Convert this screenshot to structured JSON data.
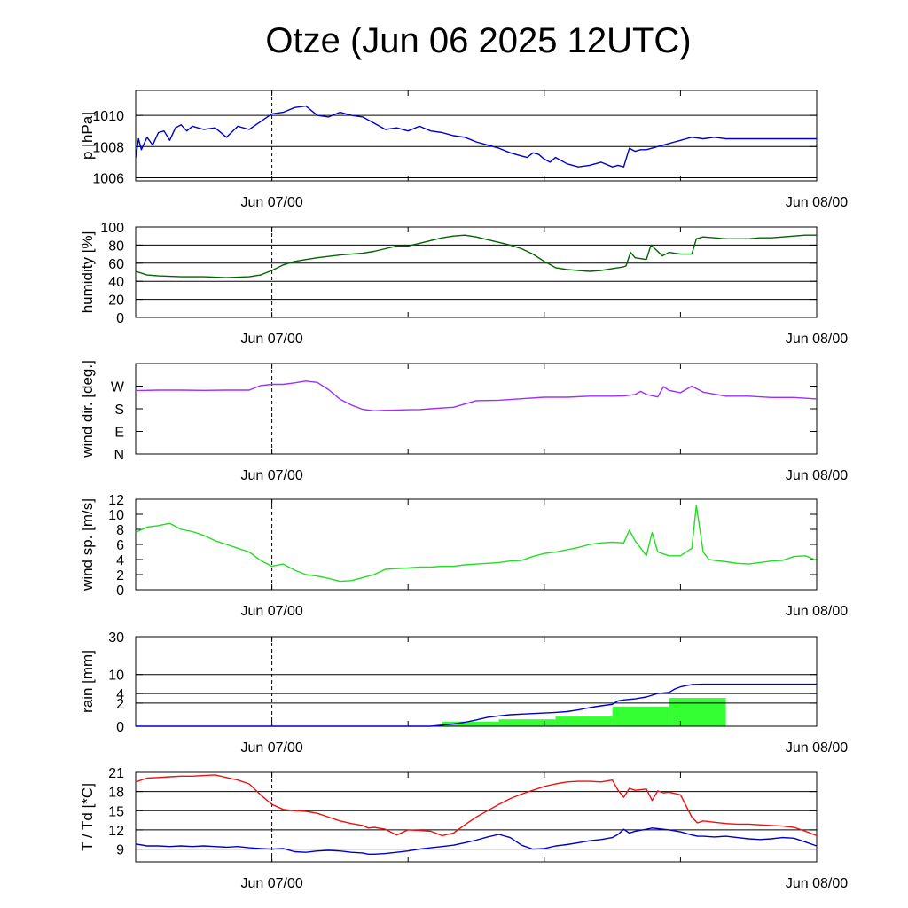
{
  "title": "Otze (Jun 06 2025 12UTC)",
  "x_ticks": [
    "Jun 07/00",
    "Jun 08/00"
  ],
  "colors": {
    "pressure": "#0000cc",
    "humidity": "#006400",
    "wind_dir": "#9b30ff",
    "wind_speed": "#22dd22",
    "rain_line": "#0000cc",
    "rain_bar": "#33ff33",
    "temperature": "#ee1111",
    "dewpoint": "#0000cc",
    "grid": "#000000"
  },
  "chart_data": [
    {
      "type": "line",
      "id": "pressure",
      "ylabel": "p [hPa]",
      "ylim": [
        1005.8,
        1011.6
      ],
      "yticks": [
        1006,
        1008,
        1010
      ],
      "yticklabels": [
        "1006",
        "1008",
        "1010"
      ],
      "grid": true,
      "x_hours": [
        0,
        0.25,
        0.5,
        1,
        1.5,
        2,
        2.5,
        3,
        3.5,
        4,
        4.5,
        5,
        6,
        7,
        8,
        9,
        10,
        11,
        12,
        13,
        14,
        15,
        16,
        17,
        18,
        19,
        20,
        21,
        22,
        23,
        24,
        25,
        26,
        27,
        28,
        29,
        30,
        31,
        32,
        33,
        34,
        34.5,
        35,
        35.5,
        36,
        36.5,
        37,
        38,
        39,
        40,
        41,
        42,
        42.5,
        43,
        43.5,
        44,
        44.5,
        45,
        45.5,
        46,
        46.5,
        47,
        47.5,
        48,
        48.5,
        49,
        50,
        51,
        52,
        53,
        54,
        55,
        56,
        57,
        58,
        59,
        60
      ],
      "series": [
        {
          "values": [
            1007.3,
            1008.5,
            1007.8,
            1008.6,
            1008.1,
            1008.9,
            1009.0,
            1008.4,
            1009.2,
            1009.4,
            1009.0,
            1009.3,
            1009.1,
            1009.2,
            1008.6,
            1009.3,
            1009.1,
            1009.6,
            1010.1,
            1010.2,
            1010.5,
            1010.6,
            1010.0,
            1009.9,
            1010.2,
            1010.0,
            1009.9,
            1009.5,
            1009.1,
            1009.2,
            1009.0,
            1009.3,
            1009.0,
            1008.9,
            1008.7,
            1008.6,
            1008.3,
            1008.1,
            1007.9,
            1007.6,
            1007.4,
            1007.3,
            1007.6,
            1007.5,
            1007.2,
            1007.0,
            1007.3,
            1006.9,
            1006.7,
            1006.8,
            1007.0,
            1006.7,
            1006.8,
            1006.7,
            1007.9,
            1007.7,
            1007.8,
            1007.8,
            1007.9,
            1008.0,
            1008.1,
            1008.2,
            1008.3,
            1008.4,
            1008.5,
            1008.6,
            1008.5,
            1008.6,
            1008.5,
            1008.5,
            1008.5,
            1008.5,
            1008.5,
            1008.5,
            1008.5,
            1008.5,
            1008.5
          ]
        }
      ]
    },
    {
      "type": "line",
      "id": "humidity",
      "ylabel": "humidity [%]",
      "ylim": [
        0,
        100
      ],
      "yticks": [
        0,
        20,
        40,
        60,
        80,
        100
      ],
      "yticklabels": [
        "0",
        "20",
        "40",
        "60",
        "80",
        "100"
      ],
      "grid": true,
      "x_hours": [
        0,
        1,
        2,
        4,
        6,
        8,
        10,
        11,
        12,
        13,
        14,
        16,
        18,
        20,
        21,
        22,
        23,
        24,
        25,
        26,
        27,
        28,
        29,
        30,
        31,
        32,
        33,
        34,
        35,
        36,
        37,
        38,
        39,
        40,
        41,
        42,
        43,
        43.2,
        43.6,
        44,
        45,
        45.4,
        46,
        46.4,
        47,
        48,
        49,
        49.4,
        50,
        51,
        52,
        53,
        54,
        55,
        56,
        57,
        58,
        59,
        60
      ],
      "series": [
        {
          "values": [
            51,
            47,
            46,
            45,
            45,
            44,
            45,
            47,
            52,
            58,
            62,
            66,
            69,
            71,
            73,
            76,
            79,
            79,
            82,
            85,
            88,
            90,
            91,
            89,
            86,
            83,
            80,
            76,
            70,
            62,
            55,
            53,
            52,
            51,
            52,
            54,
            56,
            57,
            72,
            66,
            64,
            80,
            73,
            68,
            72,
            70,
            70,
            87,
            89,
            88,
            87,
            87,
            87,
            88,
            88,
            89,
            90,
            91,
            91
          ]
        }
      ]
    },
    {
      "type": "line",
      "id": "wind_dir",
      "ylabel": "wind dir. [deg.]",
      "ylim": [
        0,
        360
      ],
      "yticks": [
        0,
        90,
        180,
        270
      ],
      "yticklabels": [
        "N",
        "E",
        "S",
        "W"
      ],
      "grid": false,
      "x_hours": [
        0,
        2,
        4,
        6,
        8,
        10,
        11,
        12,
        13,
        14,
        15,
        16,
        17,
        18,
        19,
        20,
        21,
        22,
        23,
        24,
        25,
        26,
        28,
        30,
        32,
        34,
        36,
        38,
        40,
        42,
        43,
        44,
        44.5,
        45,
        46,
        46.5,
        47,
        48,
        49,
        50,
        52,
        54,
        56,
        58,
        60
      ],
      "series": [
        {
          "values": [
            252,
            254,
            254,
            253,
            254,
            254,
            272,
            277,
            277,
            283,
            290,
            285,
            256,
            218,
            195,
            178,
            172,
            174,
            175,
            176,
            177,
            180,
            186,
            212,
            214,
            220,
            226,
            226,
            230,
            230,
            231,
            237,
            249,
            237,
            227,
            268,
            253,
            244,
            270,
            246,
            230,
            230,
            225,
            225,
            219
          ]
        }
      ]
    },
    {
      "type": "line",
      "id": "wind_speed",
      "ylabel": "wind sp. [m/s]",
      "ylim": [
        0,
        12
      ],
      "yticks": [
        0,
        2,
        4,
        6,
        8,
        10,
        12
      ],
      "yticklabels": [
        "0",
        "2",
        "4",
        "6",
        "8",
        "10",
        "12"
      ],
      "grid": false,
      "x_hours": [
        0,
        1,
        2,
        3,
        4,
        5,
        6,
        7,
        8,
        9,
        10,
        11,
        12,
        13,
        14,
        15,
        16,
        17,
        18,
        19,
        20,
        21,
        22,
        23,
        24,
        25,
        26,
        27,
        28,
        29,
        30,
        31,
        32,
        33,
        34,
        35,
        36,
        37,
        38,
        39,
        40,
        41,
        42,
        43,
        43.5,
        44,
        45,
        45.5,
        46,
        47,
        48,
        49,
        49.4,
        50,
        50.5,
        51,
        52,
        53,
        54,
        55,
        56,
        57,
        58,
        59,
        60
      ],
      "series": [
        {
          "values": [
            7.6,
            8.3,
            8.5,
            8.8,
            8.0,
            7.7,
            7.2,
            6.5,
            6.0,
            5.5,
            5.0,
            3.9,
            3.1,
            3.4,
            2.6,
            2.0,
            1.8,
            1.5,
            1.1,
            1.2,
            1.6,
            2.0,
            2.7,
            2.8,
            2.9,
            3.0,
            3.0,
            3.1,
            3.1,
            3.3,
            3.4,
            3.5,
            3.6,
            3.8,
            3.9,
            4.4,
            4.8,
            5.0,
            5.3,
            5.6,
            6.0,
            6.2,
            6.3,
            6.2,
            7.9,
            6.5,
            4.5,
            7.6,
            5.0,
            4.5,
            4.5,
            5.5,
            11.2,
            5.0,
            4.0,
            3.9,
            3.7,
            3.5,
            3.4,
            3.6,
            3.8,
            3.9,
            4.4,
            4.5,
            3.9
          ]
        }
      ]
    },
    {
      "type": "line",
      "id": "rain",
      "ylabel": "rain [mm]",
      "scale": "sqrt",
      "ylim": [
        0,
        30
      ],
      "yticks": [
        0,
        2,
        4,
        10,
        30
      ],
      "yticklabels": [
        "0",
        "2",
        "4",
        "10",
        "30"
      ],
      "grid": true,
      "x_hours": [
        0,
        20,
        24,
        26,
        27,
        28,
        29,
        30,
        31,
        32,
        33,
        34,
        35,
        36,
        37,
        38,
        39,
        40,
        41,
        42,
        42.5,
        43,
        44,
        45,
        45.5,
        46,
        47,
        47.5,
        48,
        49,
        50,
        51,
        54,
        57,
        60
      ],
      "series": [
        {
          "values": [
            0,
            0,
            0,
            0,
            0.005,
            0.02,
            0.06,
            0.15,
            0.3,
            0.4,
            0.5,
            0.55,
            0.6,
            0.65,
            0.72,
            0.8,
            1.0,
            1.3,
            1.55,
            1.8,
            2.4,
            2.6,
            2.8,
            3.2,
            3.6,
            4.0,
            4.3,
            5.2,
            5.8,
            6.5,
            6.6,
            6.6,
            6.6,
            6.6,
            6.6
          ]
        }
      ],
      "bars": {
        "x_start": [
          27,
          32,
          37,
          42,
          47
        ],
        "x_end": [
          32,
          37,
          42,
          47,
          52
        ],
        "values": [
          0.08,
          0.18,
          0.35,
          1.45,
          3.0
        ]
      }
    },
    {
      "type": "line",
      "id": "temperature",
      "ylabel": "T / Td [*C]",
      "ylim": [
        7,
        21
      ],
      "yticks": [
        9,
        12,
        15,
        18,
        21
      ],
      "yticklabels": [
        "9",
        "12",
        "15",
        "18",
        "21"
      ],
      "grid": true,
      "x_hours": [
        0,
        1,
        2,
        3,
        4,
        5,
        6,
        7,
        8,
        9,
        10,
        11,
        12,
        13,
        14,
        15,
        16,
        17,
        18,
        19,
        20,
        20.5,
        21,
        22,
        23,
        24,
        25,
        26,
        27,
        28,
        29,
        30,
        31,
        32,
        33,
        34,
        35,
        36,
        37,
        38,
        39,
        40,
        41,
        42,
        42.5,
        43,
        43.5,
        44,
        45,
        45.5,
        46,
        46.5,
        47,
        48,
        49,
        49.5,
        50,
        51,
        52,
        53,
        54,
        55,
        56,
        57,
        58,
        59,
        60
      ],
      "series": [
        {
          "name": "T",
          "values": [
            19.5,
            20.1,
            20.2,
            20.3,
            20.4,
            20.4,
            20.5,
            20.6,
            20.2,
            19.8,
            19.2,
            17.5,
            16.0,
            15.2,
            15.0,
            14.9,
            14.6,
            14.0,
            13.4,
            13.0,
            12.7,
            12.3,
            12.4,
            12.1,
            11.2,
            12.0,
            11.9,
            11.8,
            11.1,
            11.5,
            12.8,
            14.0,
            15.0,
            16.0,
            16.9,
            17.6,
            18.2,
            18.8,
            19.2,
            19.5,
            19.6,
            19.6,
            19.5,
            19.8,
            18.2,
            17.1,
            18.5,
            18.2,
            18.4,
            16.6,
            18.1,
            17.8,
            17.9,
            17.5,
            14.0,
            13.1,
            13.4,
            13.2,
            13.0,
            12.9,
            12.9,
            12.8,
            12.7,
            12.6,
            12.4,
            11.8,
            11.1
          ]
        },
        {
          "name": "Td",
          "values": [
            9.8,
            9.5,
            9.5,
            9.4,
            9.5,
            9.4,
            9.5,
            9.4,
            9.3,
            9.4,
            9.2,
            9.1,
            9.0,
            9.1,
            8.6,
            8.5,
            8.7,
            8.8,
            8.7,
            8.5,
            8.4,
            8.2,
            8.2,
            8.3,
            8.5,
            8.7,
            9.0,
            9.2,
            9.4,
            9.6,
            10.0,
            10.4,
            10.9,
            11.3,
            10.8,
            9.6,
            9.0,
            9.1,
            9.5,
            9.7,
            10.0,
            10.3,
            10.5,
            10.8,
            11.3,
            12.1,
            11.5,
            11.8,
            12.1,
            12.3,
            12.2,
            12.1,
            12.0,
            11.7,
            11.2,
            11.0,
            11.0,
            10.9,
            11.0,
            10.8,
            10.6,
            10.5,
            10.6,
            10.8,
            10.7,
            10.1,
            9.5
          ]
        }
      ]
    }
  ]
}
